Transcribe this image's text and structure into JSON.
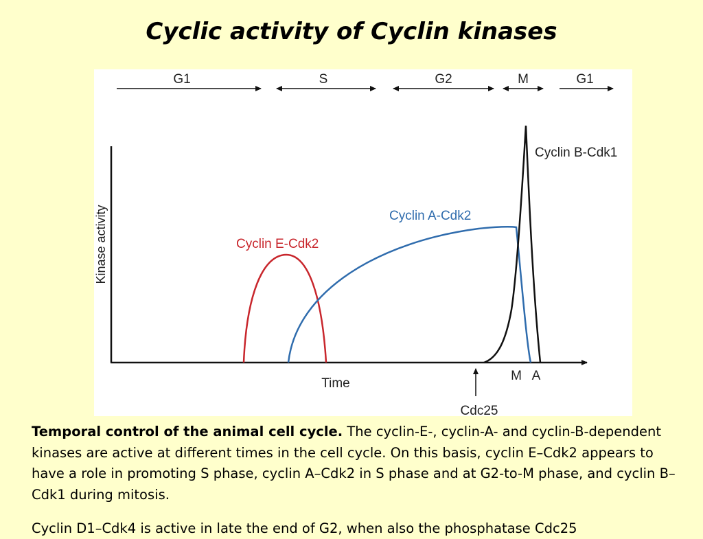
{
  "slide": {
    "title": "Cyclic activity of Cyclin kinases"
  },
  "diagram": {
    "phases": [
      "G1",
      "S",
      "G2",
      "M",
      "G1"
    ],
    "y_axis_label": "Kinase activity",
    "x_axis_label": "Time",
    "curves": {
      "cyclin_e": "Cyclin E-Cdk2",
      "cyclin_a": "Cyclin A-Cdk2",
      "cyclin_b": "Cyclin B-Cdk1"
    },
    "markers": {
      "m": "M",
      "a": "A",
      "cdc25": "Cdc25"
    },
    "colors": {
      "cyclin_e": "#c8262c",
      "cyclin_a": "#2f6cad",
      "cyclin_b": "#111111",
      "axes": "#111111"
    }
  },
  "caption": {
    "lead": "Temporal control of the animal cell cycle.",
    "body": "The cyclin-E-, cyclin-A- and cyclin-B-dependent kinases are active at different times in the cell cycle. On this basis, cyclin E–Cdk2 appears to have a role in promoting S phase, cyclin A–Cdk2 in S phase and at G2-to-M phase, and cyclin B–Cdk1 during mitosis."
  },
  "next_paragraph": "Cyclin D1–Cdk4 is active in late the end of G2, when also the phosphatase Cdc25"
}
